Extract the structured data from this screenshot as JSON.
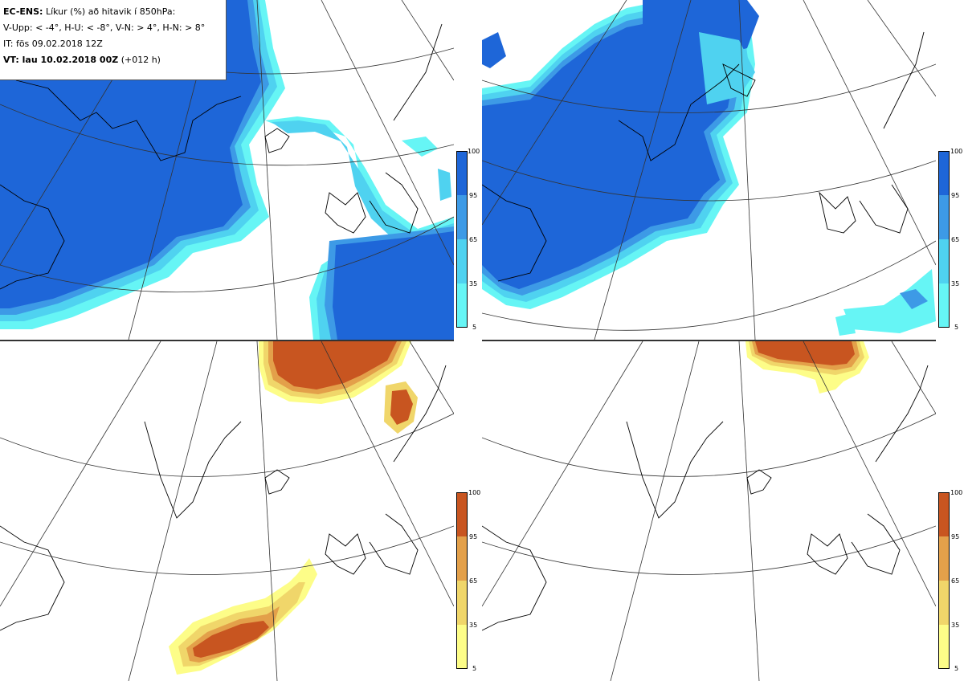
{
  "title": {
    "model": "EC-ENS:",
    "description": "Líkur (%) að hitavik í 850hPa:",
    "classes": "V-Upp: < -4°, H-U: < -8°, V-N: > 4°, H-N: > 8°",
    "init_time": "IT: fös 09.02.2018 12Z",
    "valid_label": "VT: lau 10.02.2018 00Z",
    "valid_offset": "(+012 h)"
  },
  "colors": {
    "blue_5": "#66f5f5",
    "blue_35": "#4fd2f0",
    "blue_65": "#3d9ae6",
    "blue_95": "#1e66d8",
    "orange_5": "#fdfd88",
    "orange_35": "#f0d66a",
    "orange_65": "#e3a04a",
    "orange_95": "#c85520",
    "coast": "#000000",
    "grid": "#333333"
  },
  "colorbar_ticks": [
    "100",
    "95",
    "65",
    "35",
    "5"
  ],
  "panels": [
    {
      "name": "V-Upp",
      "palette": "blue"
    },
    {
      "name": "H-U",
      "palette": "blue"
    },
    {
      "name": "V-N",
      "palette": "orange"
    },
    {
      "name": "H-N",
      "palette": "orange"
    }
  ]
}
